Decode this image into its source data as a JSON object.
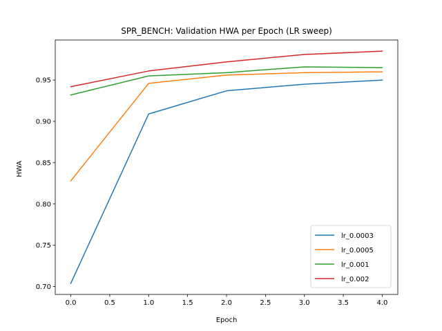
{
  "chart_data": {
    "type": "line",
    "title": "SPR_BENCH: Validation HWA per Epoch (LR sweep)",
    "xlabel": "Epoch",
    "ylabel": "HWA",
    "x": [
      0,
      1,
      2,
      3,
      4
    ],
    "xlim": [
      -0.2,
      4.2
    ],
    "ylim": [
      0.6905,
      0.9985
    ],
    "xticks": [
      0.0,
      0.5,
      1.0,
      1.5,
      2.0,
      2.5,
      3.0,
      3.5,
      4.0
    ],
    "xtick_labels": [
      "0.0",
      "0.5",
      "1.0",
      "1.5",
      "2.0",
      "2.5",
      "3.0",
      "3.5",
      "4.0"
    ],
    "yticks": [
      0.7,
      0.75,
      0.8,
      0.85,
      0.9,
      0.95
    ],
    "ytick_labels": [
      "0.70",
      "0.75",
      "0.80",
      "0.85",
      "0.90",
      "0.95"
    ],
    "grid": false,
    "legend_position": "lower-right",
    "series": [
      {
        "name": "lr_0.0003",
        "color": "#1f77b4",
        "values": [
          0.704,
          0.909,
          0.937,
          0.945,
          0.95
        ]
      },
      {
        "name": "lr_0.0005",
        "color": "#ff7f0e",
        "values": [
          0.828,
          0.946,
          0.956,
          0.959,
          0.96
        ]
      },
      {
        "name": "lr_0.001",
        "color": "#2ca02c",
        "values": [
          0.932,
          0.955,
          0.959,
          0.966,
          0.965
        ]
      },
      {
        "name": "lr_0.002",
        "color": "#d62728",
        "values": [
          0.942,
          0.961,
          0.972,
          0.981,
          0.985
        ]
      }
    ]
  }
}
